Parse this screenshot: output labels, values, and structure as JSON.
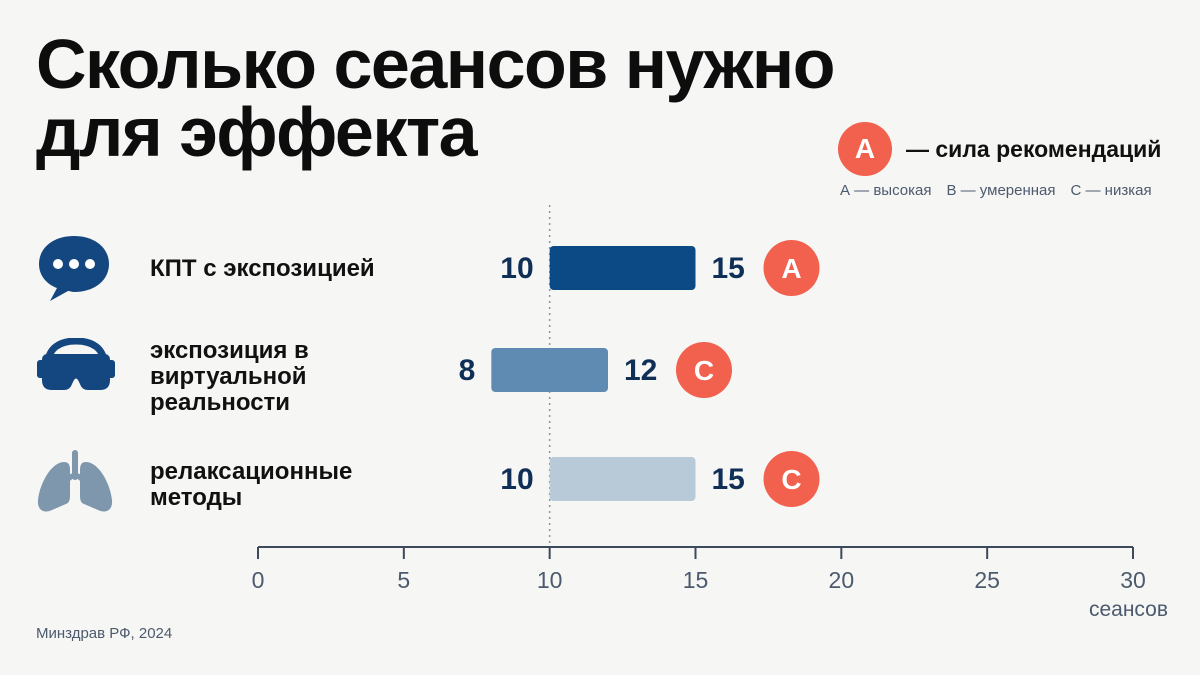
{
  "title": [
    "Сколько сеансов нужно",
    "для эффекта"
  ],
  "legend": {
    "badge": "A",
    "text": "— сила рекомендаций",
    "levels": [
      "А — высокая",
      "В — умеренная",
      "С — низкая"
    ]
  },
  "source": "Минздрав РФ, 2024",
  "colors": {
    "bar_high": "#0b4a85",
    "bar_mid": "#5f8bb3",
    "bar_low": "#b8cad8",
    "badge": "#f2604e",
    "number": "#0f2f57"
  },
  "rows": [
    {
      "label": "КПТ с экспозицией",
      "icon": "chat-bubble-icon",
      "grade": "A"
    },
    {
      "label": "экспозиция в виртуальной реальности",
      "icon": "vr-headset-icon",
      "grade": "C"
    },
    {
      "label": "релаксационные методы",
      "icon": "lungs-icon",
      "grade": "C"
    }
  ],
  "chart_data": {
    "type": "bar",
    "orientation": "horizontal-range",
    "categories": [
      "КПТ с экспозицией",
      "экспозиция в виртуальной реальности",
      "релаксационные методы"
    ],
    "ranges": [
      [
        10,
        15
      ],
      [
        8,
        12
      ],
      [
        10,
        15
      ]
    ],
    "start_labels": [
      "10",
      "8",
      "10"
    ],
    "end_labels": [
      "15",
      "12",
      "15"
    ],
    "grades": [
      "A",
      "C",
      "C"
    ],
    "bar_colors": [
      "#0b4a85",
      "#5f8bb3",
      "#b8cad8"
    ],
    "xlim": [
      0,
      30
    ],
    "xticks": [
      0,
      5,
      10,
      15,
      20,
      25,
      30
    ],
    "xlabel": "сеансов",
    "reference_line": 10,
    "grid": false
  }
}
